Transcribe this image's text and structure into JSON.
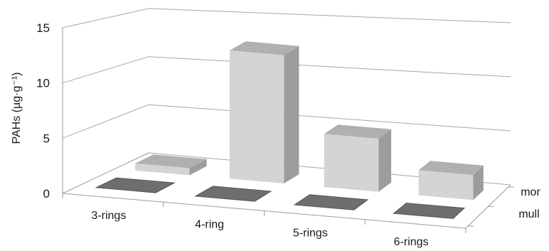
{
  "chart_data": {
    "type": "bar",
    "categories": [
      "3-rings",
      "4-ring",
      "5-rings",
      "6-rings"
    ],
    "depth_categories": [
      "mor",
      "mull"
    ],
    "series": [
      {
        "name": "mor",
        "values": [
          0.7,
          12.8,
          5.3,
          2.5
        ]
      },
      {
        "name": "mull",
        "values": [
          0.1,
          0.1,
          0.1,
          0.1
        ]
      }
    ],
    "ylabel": "PAHs (µg·g⁻¹)",
    "yticks": [
      "0",
      "5",
      "10",
      "15"
    ],
    "ylim": [
      0,
      15
    ],
    "grid": true,
    "colors": {
      "mor_front": "#d4d4d4",
      "mor_side": "#9c9c9c",
      "mor_top": "#b0b0b0",
      "mull_top": "#6e6e6e",
      "mull_side": "#4c4c4c",
      "grid": "#a6a6a6"
    }
  }
}
